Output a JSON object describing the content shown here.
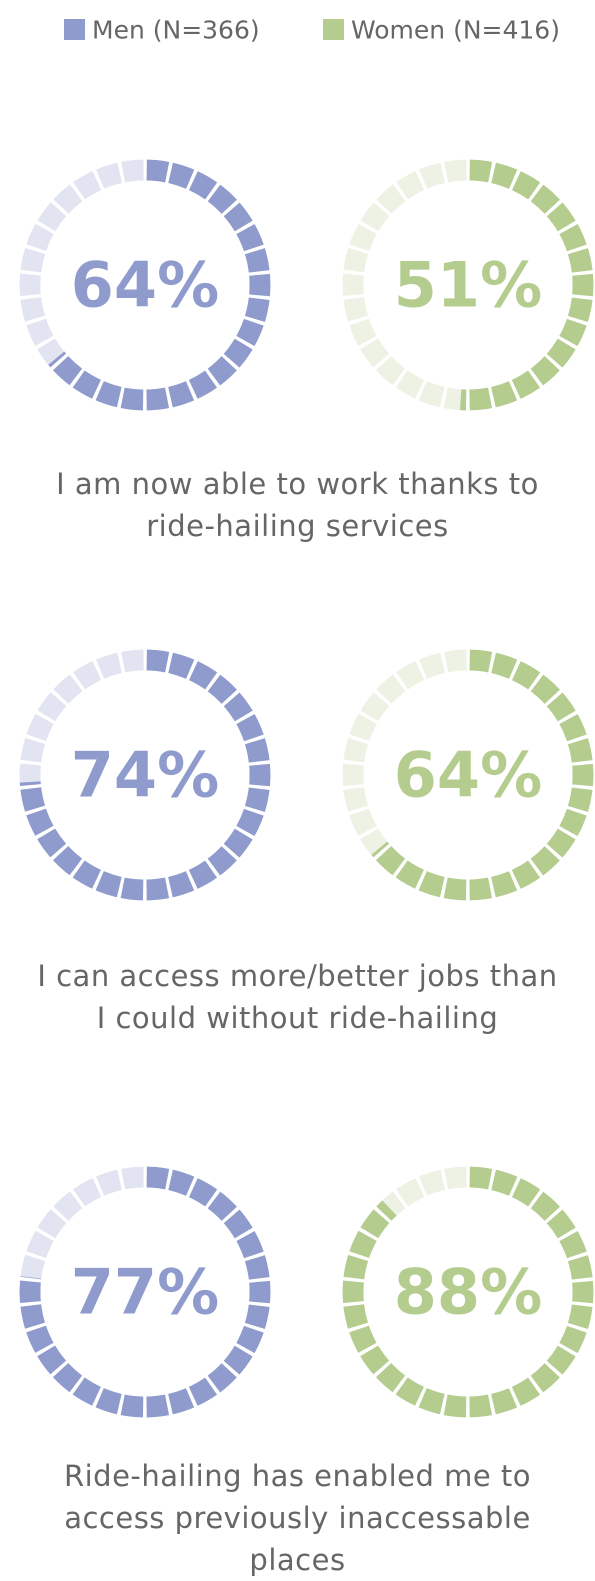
{
  "chart_data": {
    "type": "donut",
    "categories": [
      "I am now able to work thanks to ride-hailing services",
      "I can access more/better jobs than I could without ride-hailing",
      "Ride-hailing has enabled me to access previously inaccessable places"
    ],
    "series": [
      {
        "name": "Men (N=366)",
        "color": "#8f9bcd",
        "track_color": "#e2e5f1",
        "values": [
          64,
          74,
          77
        ],
        "value_labels": [
          "64%",
          "74%",
          "77%"
        ]
      },
      {
        "name": "Women (N=416)",
        "color": "#b4cc8d",
        "track_color": "#edf2e5",
        "values": [
          51,
          64,
          88
        ],
        "value_labels": [
          "51%",
          "64%",
          "88%"
        ]
      }
    ]
  }
}
